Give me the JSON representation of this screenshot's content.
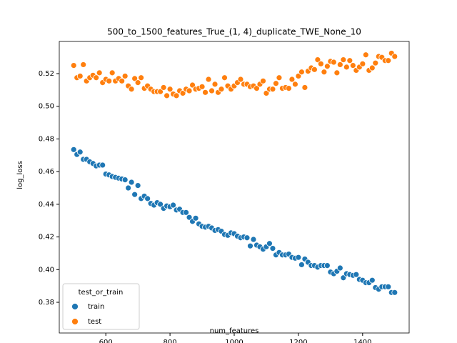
{
  "chart_data": {
    "type": "scatter",
    "title": "500_to_1500_features_True_(1, 4)_duplicate_TWE_None_10",
    "x_label": "num_features",
    "y_label": "log_loss",
    "legend_title": "test_or_train",
    "legend_position": "lower left",
    "xlim": [
      455,
      1545
    ],
    "ylim": [
      0.3612,
      0.5397
    ],
    "xticks": [
      600,
      800,
      1000,
      1200,
      1400
    ],
    "yticks": [
      0.38,
      {
        "value": 0.4,
        "label": "0.40"
      },
      0.42,
      0.44,
      0.46,
      0.48,
      {
        "value": 0.5,
        "label": "0.50"
      },
      0.52
    ],
    "x": [
      500,
      510,
      520,
      530,
      540,
      550,
      560,
      570,
      580,
      590,
      600,
      610,
      620,
      630,
      640,
      650,
      660,
      670,
      680,
      690,
      700,
      710,
      720,
      730,
      740,
      750,
      760,
      770,
      780,
      790,
      800,
      810,
      820,
      830,
      840,
      850,
      860,
      870,
      880,
      890,
      900,
      910,
      920,
      930,
      940,
      950,
      960,
      970,
      980,
      990,
      1000,
      1010,
      1020,
      1030,
      1040,
      1050,
      1060,
      1070,
      1080,
      1090,
      1100,
      1110,
      1120,
      1130,
      1140,
      1150,
      1160,
      1170,
      1180,
      1190,
      1200,
      1210,
      1220,
      1230,
      1240,
      1250,
      1260,
      1270,
      1280,
      1290,
      1300,
      1310,
      1320,
      1330,
      1340,
      1350,
      1360,
      1370,
      1380,
      1390,
      1400,
      1410,
      1420,
      1430,
      1440,
      1450,
      1460,
      1470,
      1480,
      1490,
      1500
    ],
    "series": [
      {
        "name": "train",
        "color": "#1f77b4",
        "values": [
          0.4735,
          0.4705,
          0.472,
          0.4675,
          0.4675,
          0.466,
          0.465,
          0.4635,
          0.464,
          0.464,
          0.4585,
          0.458,
          0.457,
          0.4565,
          0.456,
          0.4555,
          0.455,
          0.45,
          0.4535,
          0.446,
          0.4515,
          0.4435,
          0.445,
          0.4435,
          0.4405,
          0.4395,
          0.441,
          0.44,
          0.4375,
          0.439,
          0.4385,
          0.4395,
          0.4365,
          0.437,
          0.435,
          0.435,
          0.432,
          0.4295,
          0.4315,
          0.428,
          0.4265,
          0.426,
          0.4265,
          0.4255,
          0.424,
          0.4245,
          0.4235,
          0.4215,
          0.421,
          0.4225,
          0.422,
          0.4205,
          0.4195,
          0.42,
          0.4195,
          0.4145,
          0.4185,
          0.415,
          0.414,
          0.4125,
          0.414,
          0.416,
          0.413,
          0.409,
          0.4105,
          0.409,
          0.409,
          0.4095,
          0.4075,
          0.407,
          0.4075,
          0.403,
          0.4065,
          0.4045,
          0.4025,
          0.4025,
          0.4015,
          0.4025,
          0.4025,
          0.4025,
          0.3985,
          0.3975,
          0.399,
          0.401,
          0.395,
          0.3975,
          0.397,
          0.3965,
          0.397,
          0.394,
          0.3935,
          0.392,
          0.392,
          0.3935,
          0.389,
          0.388,
          0.3895,
          0.3895,
          0.3895,
          0.386,
          0.386
        ]
      },
      {
        "name": "test",
        "color": "#ff7f0e",
        "values": [
          0.525,
          0.5175,
          0.5185,
          0.5255,
          0.5155,
          0.5175,
          0.519,
          0.5175,
          0.5205,
          0.5145,
          0.5165,
          0.5155,
          0.5205,
          0.5155,
          0.517,
          0.5155,
          0.5185,
          0.5125,
          0.5105,
          0.517,
          0.5145,
          0.5175,
          0.511,
          0.5125,
          0.5105,
          0.509,
          0.509,
          0.509,
          0.5115,
          0.5065,
          0.5105,
          0.5075,
          0.5065,
          0.5095,
          0.508,
          0.5105,
          0.5095,
          0.513,
          0.5105,
          0.511,
          0.512,
          0.5085,
          0.5165,
          0.5095,
          0.5135,
          0.5085,
          0.5105,
          0.5175,
          0.5125,
          0.5105,
          0.5125,
          0.5145,
          0.5165,
          0.5135,
          0.5135,
          0.512,
          0.5125,
          0.511,
          0.5135,
          0.5155,
          0.508,
          0.5105,
          0.5105,
          0.514,
          0.5175,
          0.511,
          0.5115,
          0.511,
          0.5165,
          0.5135,
          0.5185,
          0.521,
          0.5115,
          0.5215,
          0.5235,
          0.5225,
          0.5285,
          0.526,
          0.521,
          0.5245,
          0.5275,
          0.527,
          0.5205,
          0.5255,
          0.5285,
          0.524,
          0.528,
          0.525,
          0.522,
          0.524,
          0.526,
          0.5315,
          0.522,
          0.5235,
          0.5265,
          0.5305,
          0.53,
          0.528,
          0.528,
          0.5325,
          0.5305
        ]
      }
    ]
  }
}
